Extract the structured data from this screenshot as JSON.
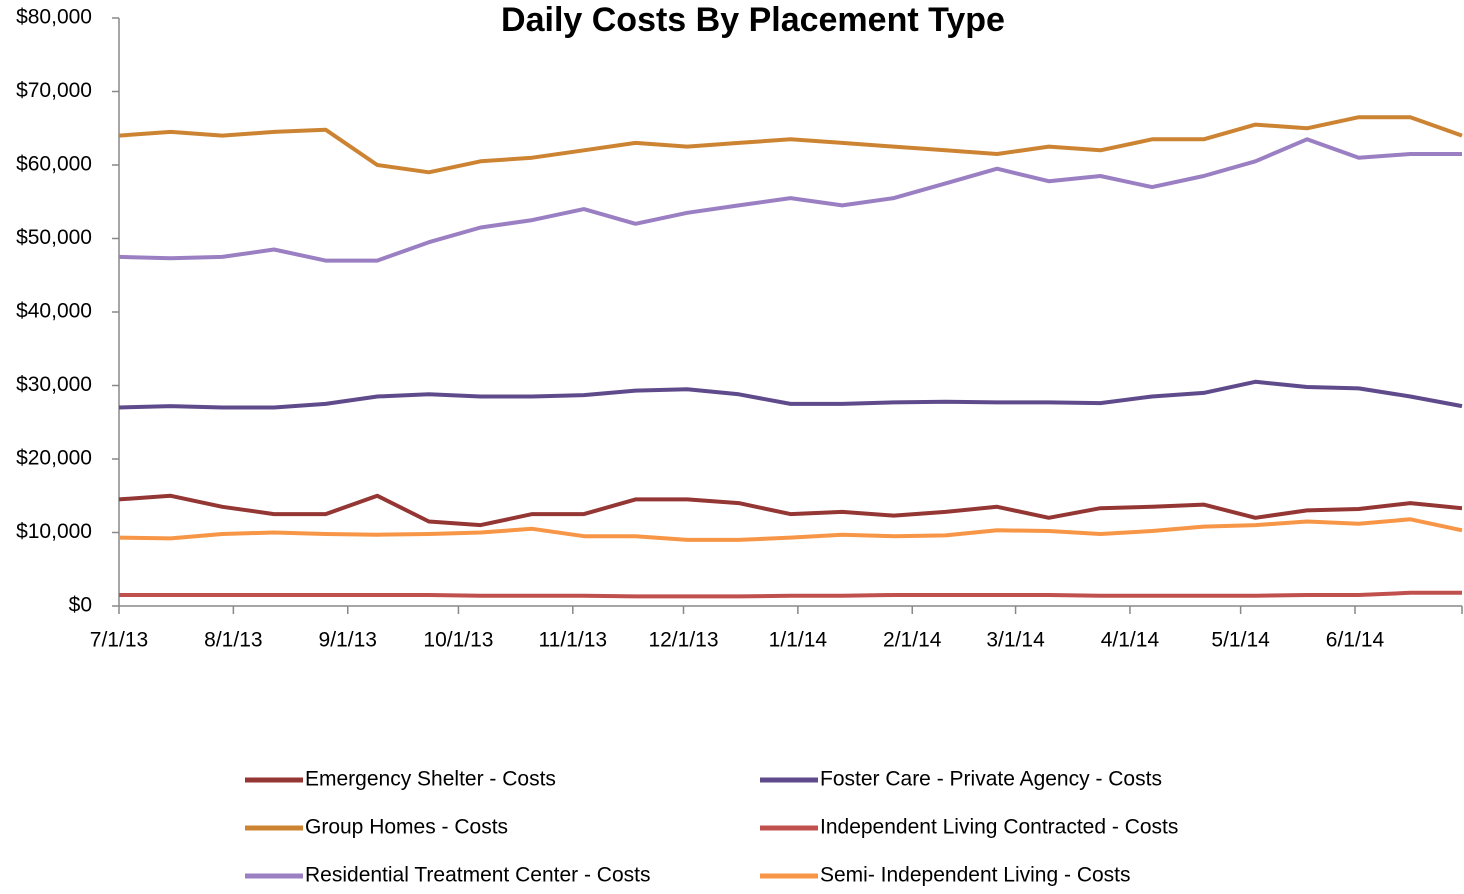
{
  "chart_data": {
    "type": "line",
    "title": "Daily Costs By Placement Type",
    "x": [
      "2013-07-01",
      "2013-07-15",
      "2013-07-29",
      "2013-08-12",
      "2013-08-26",
      "2013-09-09",
      "2013-09-23",
      "2013-10-07",
      "2013-10-21",
      "2013-11-04",
      "2013-11-18",
      "2013-12-02",
      "2013-12-16",
      "2013-12-30",
      "2014-01-13",
      "2014-01-27",
      "2014-02-10",
      "2014-02-24",
      "2014-03-10",
      "2014-03-24",
      "2014-04-07",
      "2014-04-21",
      "2014-05-05",
      "2014-05-19",
      "2014-06-02",
      "2014-06-16",
      "2014-06-30"
    ],
    "series": [
      {
        "name": "Emergency Shelter - Costs",
        "color": "#943634",
        "values": [
          14500,
          15000,
          13500,
          12500,
          12500,
          15000,
          11500,
          11000,
          12500,
          12500,
          14500,
          14500,
          14000,
          12500,
          12800,
          12300,
          12800,
          13500,
          12000,
          13300,
          13500,
          13800,
          12000,
          13000,
          13200,
          14000,
          13300
        ]
      },
      {
        "name": "Foster Care - Private Agency - Costs",
        "color": "#5f4b8b",
        "values": [
          27000,
          27200,
          27000,
          27000,
          27500,
          28500,
          28800,
          28500,
          28500,
          28700,
          29300,
          29500,
          28800,
          27500,
          27500,
          27700,
          27800,
          27700,
          27700,
          27600,
          28500,
          29000,
          30500,
          29800,
          29600,
          28500,
          27200
        ]
      },
      {
        "name": "Group Homes - Costs",
        "color": "#cc8433",
        "values": [
          64000,
          64500,
          64000,
          64500,
          64800,
          60000,
          59000,
          60500,
          61000,
          62000,
          63000,
          62500,
          63000,
          63500,
          63000,
          62500,
          62000,
          61500,
          62500,
          62000,
          63500,
          63500,
          65500,
          65000,
          66500,
          66500,
          64000
        ]
      },
      {
        "name": "Independent Living Contracted - Costs",
        "color": "#c0504d",
        "values": [
          1500,
          1500,
          1500,
          1500,
          1500,
          1500,
          1500,
          1400,
          1400,
          1400,
          1300,
          1300,
          1300,
          1400,
          1400,
          1500,
          1500,
          1500,
          1500,
          1400,
          1400,
          1400,
          1400,
          1500,
          1500,
          1800,
          1800
        ]
      },
      {
        "name": "Residential Treatment Center - Costs",
        "color": "#9b7fc3",
        "values": [
          47500,
          47300,
          47500,
          48500,
          47000,
          47000,
          49500,
          51500,
          52500,
          54000,
          52000,
          53500,
          54500,
          55500,
          54500,
          55500,
          57500,
          59500,
          57800,
          58500,
          57000,
          58500,
          60500,
          63500,
          61000,
          61500,
          61500
        ]
      },
      {
        "name": "Semi- Independent Living - Costs",
        "color": "#f79646",
        "values": [
          9300,
          9200,
          9800,
          10000,
          9800,
          9700,
          9800,
          10000,
          10500,
          9500,
          9500,
          9000,
          9000,
          9300,
          9700,
          9500,
          9600,
          10300,
          10200,
          9800,
          10200,
          10800,
          11000,
          11500,
          11200,
          11800,
          10300
        ]
      }
    ],
    "xlim": [
      "2013-07-01",
      "2014-06-30"
    ],
    "xticks": [
      {
        "value": "2013-07-01",
        "label": "7/1/13"
      },
      {
        "value": "2013-08-01",
        "label": "8/1/13"
      },
      {
        "value": "2013-09-01",
        "label": "9/1/13"
      },
      {
        "value": "2013-10-01",
        "label": "10/1/13"
      },
      {
        "value": "2013-11-01",
        "label": "11/1/13"
      },
      {
        "value": "2013-12-01",
        "label": "12/1/13"
      },
      {
        "value": "2014-01-01",
        "label": "1/1/14"
      },
      {
        "value": "2014-02-01",
        "label": "2/1/14"
      },
      {
        "value": "2014-03-01",
        "label": "3/1/14"
      },
      {
        "value": "2014-04-01",
        "label": "4/1/14"
      },
      {
        "value": "2014-05-01",
        "label": "5/1/14"
      },
      {
        "value": "2014-06-01",
        "label": "6/1/14"
      }
    ],
    "ylim": [
      0,
      80000
    ],
    "yticks": [
      {
        "value": 0,
        "label": "$0"
      },
      {
        "value": 10000,
        "label": "$10,000"
      },
      {
        "value": 20000,
        "label": "$20,000"
      },
      {
        "value": 30000,
        "label": "$30,000"
      },
      {
        "value": 40000,
        "label": "$40,000"
      },
      {
        "value": 50000,
        "label": "$50,000"
      },
      {
        "value": 60000,
        "label": "$60,000"
      },
      {
        "value": 70000,
        "label": "$70,000"
      },
      {
        "value": 80000,
        "label": "$80,000"
      }
    ],
    "grid": false,
    "legend": "bottom"
  }
}
